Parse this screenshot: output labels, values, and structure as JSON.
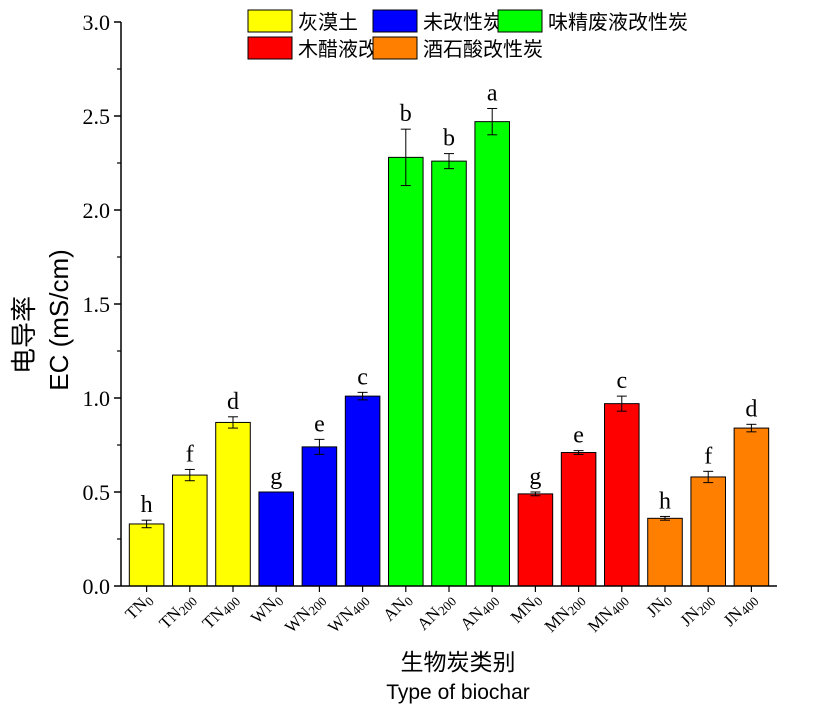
{
  "chart_data": {
    "type": "bar",
    "ylabel_cn": "电导率",
    "ylabel": "EC (mS/cm)",
    "xlabel_cn": "生物炭类别",
    "xlabel": "Type of biochar",
    "ylim": [
      0,
      3.0
    ],
    "yticks": [
      "0.0",
      "0.5",
      "1.0",
      "1.5",
      "2.0",
      "2.5",
      "3.0"
    ],
    "legend": [
      {
        "label": "灰漠土",
        "color": "#ffff00"
      },
      {
        "label": "未改性炭",
        "color": "#0000ff"
      },
      {
        "label": "味精废液改性炭",
        "color": "#00ff00"
      },
      {
        "label": "木醋液改性炭",
        "color": "#ff0000"
      },
      {
        "label": "酒石酸改性炭",
        "color": "#ff8000"
      }
    ],
    "bars": [
      {
        "base": "TN",
        "sub": "0",
        "value": 0.33,
        "err": 0.02,
        "letter": "h",
        "group": 0
      },
      {
        "base": "TN",
        "sub": "200",
        "value": 0.59,
        "err": 0.03,
        "letter": "f",
        "group": 0
      },
      {
        "base": "TN",
        "sub": "400",
        "value": 0.87,
        "err": 0.03,
        "letter": "d",
        "group": 0
      },
      {
        "base": "WN",
        "sub": "0",
        "value": 0.5,
        "err": 0.0,
        "letter": "g",
        "group": 1
      },
      {
        "base": "WN",
        "sub": "200",
        "value": 0.74,
        "err": 0.04,
        "letter": "e",
        "group": 1
      },
      {
        "base": "WN",
        "sub": "400",
        "value": 1.01,
        "err": 0.02,
        "letter": "c",
        "group": 1
      },
      {
        "base": "AN",
        "sub": "0",
        "value": 2.28,
        "err": 0.15,
        "letter": "b",
        "group": 2
      },
      {
        "base": "AN",
        "sub": "200",
        "value": 2.26,
        "err": 0.04,
        "letter": "b",
        "group": 2
      },
      {
        "base": "AN",
        "sub": "400",
        "value": 2.47,
        "err": 0.07,
        "letter": "a",
        "group": 2
      },
      {
        "base": "MN",
        "sub": "0",
        "value": 0.49,
        "err": 0.01,
        "letter": "g",
        "group": 3
      },
      {
        "base": "MN",
        "sub": "200",
        "value": 0.71,
        "err": 0.01,
        "letter": "e",
        "group": 3
      },
      {
        "base": "MN",
        "sub": "400",
        "value": 0.97,
        "err": 0.04,
        "letter": "c",
        "group": 3
      },
      {
        "base": "JN",
        "sub": "0",
        "value": 0.36,
        "err": 0.01,
        "letter": "h",
        "group": 4
      },
      {
        "base": "JN",
        "sub": "200",
        "value": 0.58,
        "err": 0.03,
        "letter": "f",
        "group": 4
      },
      {
        "base": "JN",
        "sub": "400",
        "value": 0.84,
        "err": 0.02,
        "letter": "d",
        "group": 4
      }
    ]
  }
}
